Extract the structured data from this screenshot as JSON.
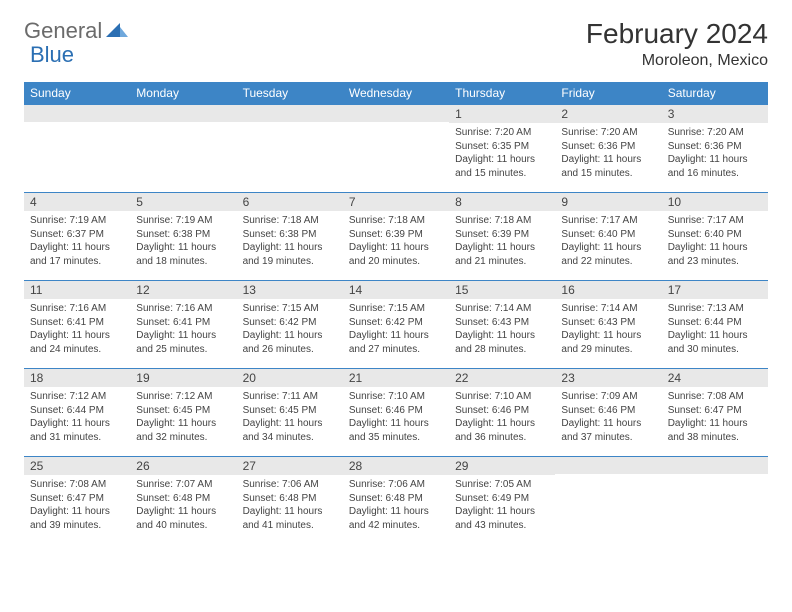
{
  "logo": {
    "part1": "General",
    "part2": "Blue"
  },
  "title": "February 2024",
  "location": "Moroleon, Mexico",
  "colors": {
    "header_bg": "#3d85c6",
    "daynum_bg": "#e8e8e8",
    "border": "#3d85c6",
    "text": "#333333",
    "logo_gray": "#6b6b6b",
    "logo_blue": "#2b6fb3"
  },
  "dow": [
    "Sunday",
    "Monday",
    "Tuesday",
    "Wednesday",
    "Thursday",
    "Friday",
    "Saturday"
  ],
  "weeks": [
    [
      null,
      null,
      null,
      null,
      {
        "n": "1",
        "sr": "7:20 AM",
        "ss": "6:35 PM",
        "dl": "11 hours and 15 minutes."
      },
      {
        "n": "2",
        "sr": "7:20 AM",
        "ss": "6:36 PM",
        "dl": "11 hours and 15 minutes."
      },
      {
        "n": "3",
        "sr": "7:20 AM",
        "ss": "6:36 PM",
        "dl": "11 hours and 16 minutes."
      }
    ],
    [
      {
        "n": "4",
        "sr": "7:19 AM",
        "ss": "6:37 PM",
        "dl": "11 hours and 17 minutes."
      },
      {
        "n": "5",
        "sr": "7:19 AM",
        "ss": "6:38 PM",
        "dl": "11 hours and 18 minutes."
      },
      {
        "n": "6",
        "sr": "7:18 AM",
        "ss": "6:38 PM",
        "dl": "11 hours and 19 minutes."
      },
      {
        "n": "7",
        "sr": "7:18 AM",
        "ss": "6:39 PM",
        "dl": "11 hours and 20 minutes."
      },
      {
        "n": "8",
        "sr": "7:18 AM",
        "ss": "6:39 PM",
        "dl": "11 hours and 21 minutes."
      },
      {
        "n": "9",
        "sr": "7:17 AM",
        "ss": "6:40 PM",
        "dl": "11 hours and 22 minutes."
      },
      {
        "n": "10",
        "sr": "7:17 AM",
        "ss": "6:40 PM",
        "dl": "11 hours and 23 minutes."
      }
    ],
    [
      {
        "n": "11",
        "sr": "7:16 AM",
        "ss": "6:41 PM",
        "dl": "11 hours and 24 minutes."
      },
      {
        "n": "12",
        "sr": "7:16 AM",
        "ss": "6:41 PM",
        "dl": "11 hours and 25 minutes."
      },
      {
        "n": "13",
        "sr": "7:15 AM",
        "ss": "6:42 PM",
        "dl": "11 hours and 26 minutes."
      },
      {
        "n": "14",
        "sr": "7:15 AM",
        "ss": "6:42 PM",
        "dl": "11 hours and 27 minutes."
      },
      {
        "n": "15",
        "sr": "7:14 AM",
        "ss": "6:43 PM",
        "dl": "11 hours and 28 minutes."
      },
      {
        "n": "16",
        "sr": "7:14 AM",
        "ss": "6:43 PM",
        "dl": "11 hours and 29 minutes."
      },
      {
        "n": "17",
        "sr": "7:13 AM",
        "ss": "6:44 PM",
        "dl": "11 hours and 30 minutes."
      }
    ],
    [
      {
        "n": "18",
        "sr": "7:12 AM",
        "ss": "6:44 PM",
        "dl": "11 hours and 31 minutes."
      },
      {
        "n": "19",
        "sr": "7:12 AM",
        "ss": "6:45 PM",
        "dl": "11 hours and 32 minutes."
      },
      {
        "n": "20",
        "sr": "7:11 AM",
        "ss": "6:45 PM",
        "dl": "11 hours and 34 minutes."
      },
      {
        "n": "21",
        "sr": "7:10 AM",
        "ss": "6:46 PM",
        "dl": "11 hours and 35 minutes."
      },
      {
        "n": "22",
        "sr": "7:10 AM",
        "ss": "6:46 PM",
        "dl": "11 hours and 36 minutes."
      },
      {
        "n": "23",
        "sr": "7:09 AM",
        "ss": "6:46 PM",
        "dl": "11 hours and 37 minutes."
      },
      {
        "n": "24",
        "sr": "7:08 AM",
        "ss": "6:47 PM",
        "dl": "11 hours and 38 minutes."
      }
    ],
    [
      {
        "n": "25",
        "sr": "7:08 AM",
        "ss": "6:47 PM",
        "dl": "11 hours and 39 minutes."
      },
      {
        "n": "26",
        "sr": "7:07 AM",
        "ss": "6:48 PM",
        "dl": "11 hours and 40 minutes."
      },
      {
        "n": "27",
        "sr": "7:06 AM",
        "ss": "6:48 PM",
        "dl": "11 hours and 41 minutes."
      },
      {
        "n": "28",
        "sr": "7:06 AM",
        "ss": "6:48 PM",
        "dl": "11 hours and 42 minutes."
      },
      {
        "n": "29",
        "sr": "7:05 AM",
        "ss": "6:49 PM",
        "dl": "11 hours and 43 minutes."
      },
      null,
      null
    ]
  ],
  "labels": {
    "sunrise": "Sunrise:",
    "sunset": "Sunset:",
    "daylight": "Daylight:"
  }
}
